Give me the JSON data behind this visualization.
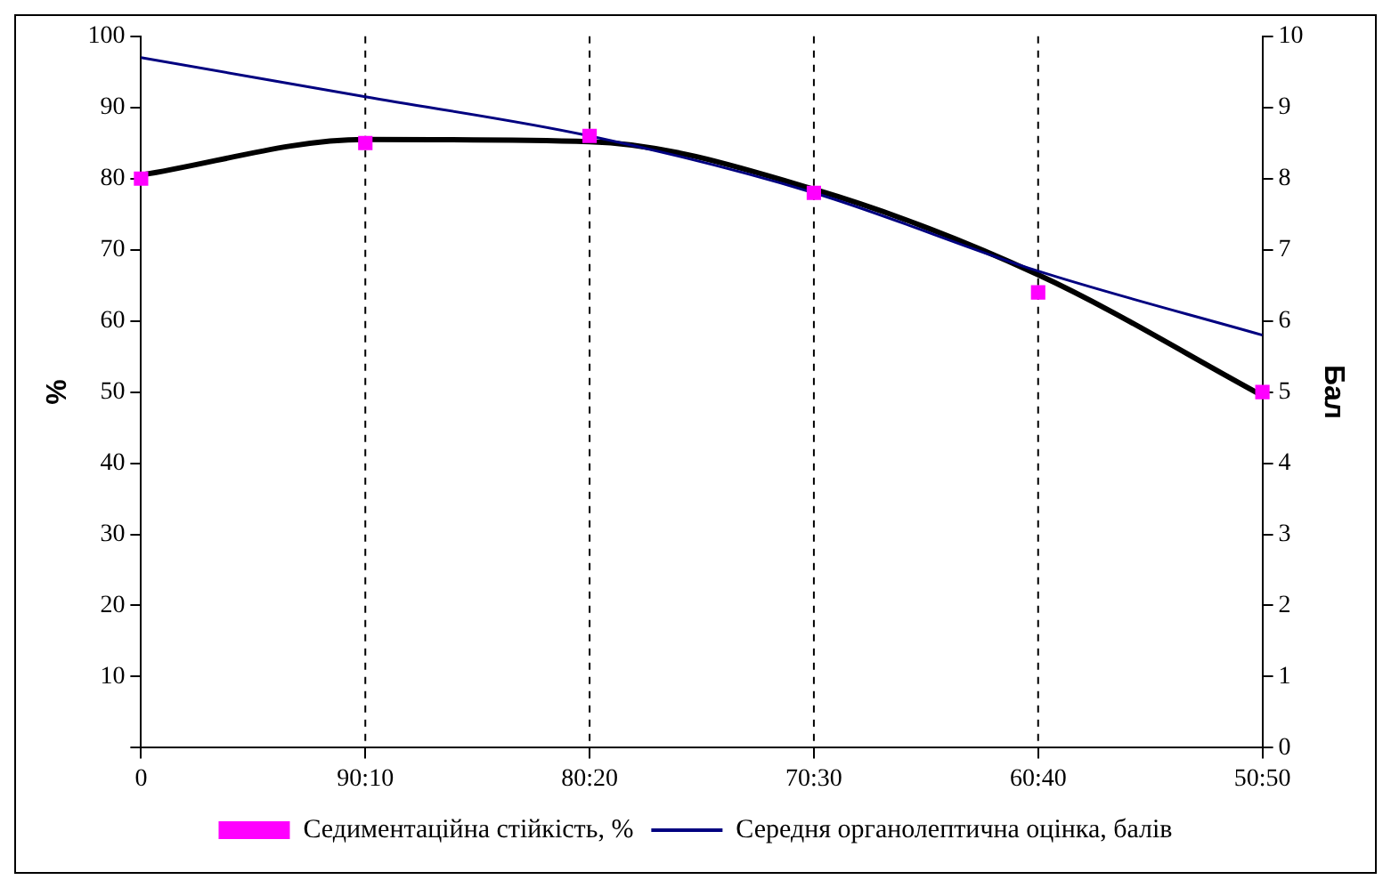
{
  "chart_data": {
    "type": "line",
    "ylabel": "%",
    "y2label": "Бал",
    "categories": [
      "0",
      "90:10",
      "80:20",
      "70:30",
      "60:40",
      "50:50"
    ],
    "series": [
      {
        "name": "Седиментаційна стійкість, %",
        "type": "scatter",
        "color": "#ff00ff",
        "marker": "square",
        "values": [
          80,
          85,
          86,
          78,
          64,
          50
        ]
      },
      {
        "type": "line",
        "color": "#000000",
        "marker": "none",
        "values": [
          80.5,
          85.5,
          85.2,
          78.5,
          66.5,
          49.5
        ]
      },
      {
        "name": "Середня органолептична оцінка, балів",
        "type": "line",
        "axis": "y2",
        "color": "#000080",
        "marker": "none",
        "values": [
          9.7,
          9.15,
          8.6,
          7.8,
          6.7,
          5.8
        ]
      }
    ],
    "ylim": [
      0,
      100
    ],
    "yticks": [
      {
        "value": 0,
        "label": null
      },
      10,
      20,
      30,
      40,
      50,
      60,
      70,
      80,
      90,
      100
    ],
    "y2lim": [
      0,
      10
    ],
    "y2ticks": [
      0,
      1,
      2,
      3,
      4,
      5,
      6,
      7,
      8,
      9,
      10
    ],
    "grid": "x",
    "legend": "bottom"
  }
}
